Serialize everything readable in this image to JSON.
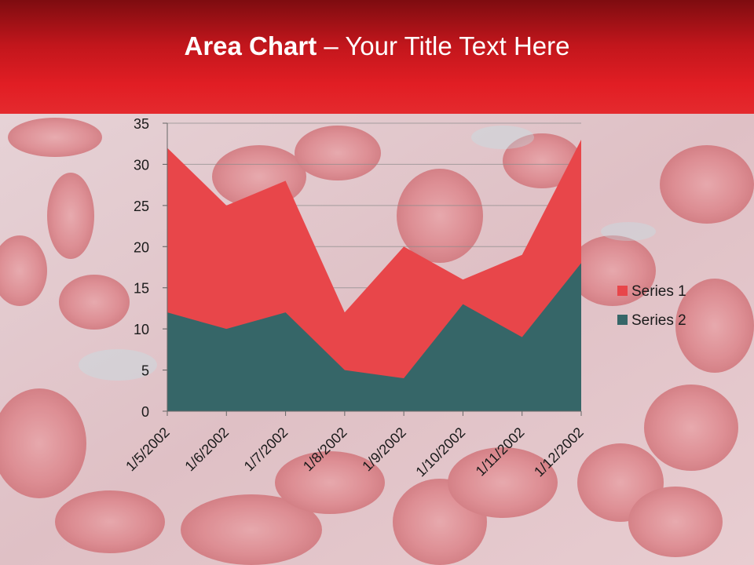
{
  "slide": {
    "title_bold": "Area Chart",
    "title_rest": " – Your Title Text Here"
  },
  "colors": {
    "series1": "#e8464a",
    "series2": "#366668",
    "header": "#e21e24",
    "background": "#e7c9cc"
  },
  "chart_data": {
    "type": "area",
    "stacked": false,
    "categories": [
      "1/5/2002",
      "1/6/2002",
      "1/7/2002",
      "1/8/2002",
      "1/9/2002",
      "1/10/2002",
      "1/11/2002",
      "1/12/2002"
    ],
    "series": [
      {
        "name": "Series 1",
        "values": [
          32,
          25,
          28,
          12,
          20,
          16,
          19,
          33
        ]
      },
      {
        "name": "Series 2",
        "values": [
          12,
          10,
          12,
          5,
          4,
          13,
          9,
          18
        ]
      }
    ],
    "ylim": [
      0,
      35
    ],
    "yticks": [
      0,
      5,
      10,
      15,
      20,
      25,
      30,
      35
    ],
    "grid": true,
    "legend": "right"
  }
}
